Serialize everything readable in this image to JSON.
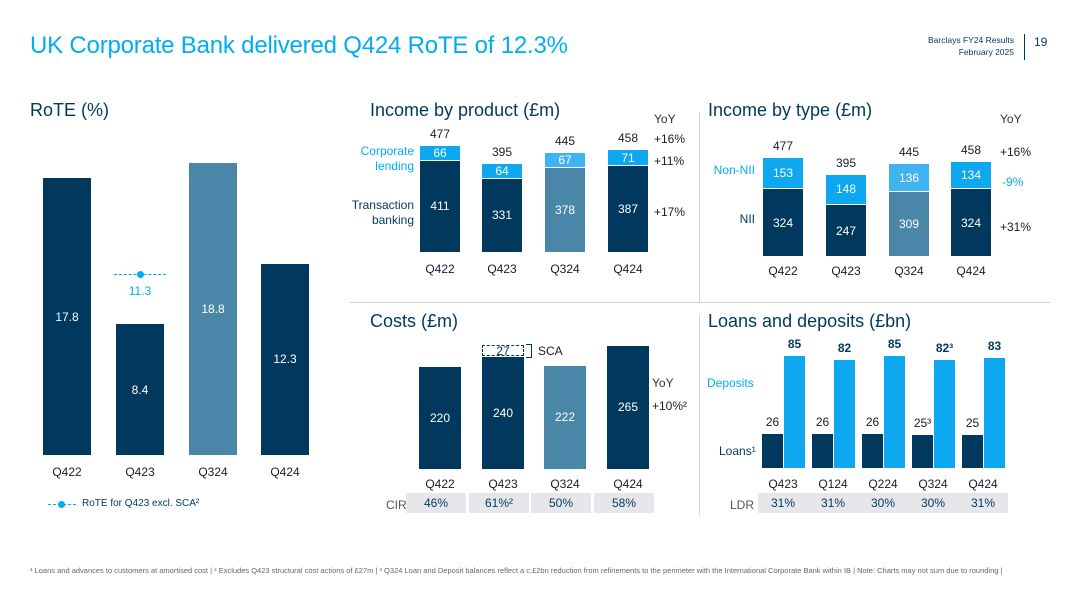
{
  "header": {
    "title": "UK Corporate Bank delivered Q424 RoTE of 12.3%",
    "brand_line1": "Barclays FY24 Results",
    "brand_line2": "February 2025",
    "page_number": "19"
  },
  "rote": {
    "title": "RoTE (%)",
    "legend": "RoTE for Q423 excl. SCA²",
    "marker_value": "11.3",
    "colors": {
      "navy": "#00395d",
      "steel": "#4a86a8",
      "cyan": "#00aeef"
    }
  },
  "income_product": {
    "title": "Income by product (£m)",
    "yoy_header": "YoY",
    "labels": {
      "lending": "Corporate lending",
      "transaction": "Transaction banking"
    },
    "yoy": {
      "total": "+16%",
      "lending": "+11%",
      "transaction": "+17%"
    }
  },
  "income_type": {
    "title": "Income by type (£m)",
    "yoy_header": "YoY",
    "labels": {
      "nonnii": "Non-NII",
      "nii": "NII"
    },
    "yoy": {
      "total": "+16%",
      "nonnii": "-9%",
      "nii": "+31%"
    }
  },
  "costs": {
    "title": "Costs (£m)",
    "sca_label": "SCA",
    "yoy_header": "YoY",
    "yoy_value": "+10%²",
    "cir_label": "CIR",
    "cir": [
      "46%",
      "61%²",
      "50%",
      "58%"
    ]
  },
  "loans": {
    "title": "Loans and deposits (£bn)",
    "deposits_label": "Deposits",
    "loans_label": "Loans¹",
    "ldr_label": "LDR",
    "ldr": [
      "31%",
      "31%",
      "30%",
      "30%",
      "31%"
    ]
  },
  "footnote": "¹ Loans and advances to customers at amortised cost | ² Excludes Q423 structural cost actions of £27m | ³ Q324 Loan and Deposit balances reflect a c.£2bn reduction from refinements to the perimeter with the International Corporate Bank within IB | Note: Charts may not sum due to rounding |",
  "chart_data": [
    {
      "type": "bar",
      "title": "RoTE (%)",
      "categories": [
        "Q422",
        "Q423",
        "Q324",
        "Q424"
      ],
      "values": [
        17.8,
        8.4,
        18.8,
        12.3
      ],
      "value_labels": [
        "17.8",
        "8.4",
        "18.8",
        "12.3"
      ],
      "annotation": {
        "category": "Q423",
        "value": 11.3,
        "label": "RoTE for Q423 excl. SCA²"
      }
    },
    {
      "type": "bar",
      "stacked": true,
      "title": "Income by product (£m)",
      "categories": [
        "Q422",
        "Q423",
        "Q324",
        "Q424"
      ],
      "series": [
        {
          "name": "Transaction banking",
          "values": [
            411,
            331,
            378,
            387
          ],
          "labels": [
            "411",
            "331",
            "378",
            "387"
          ]
        },
        {
          "name": "Corporate lending",
          "values": [
            66,
            64,
            67,
            71
          ],
          "labels": [
            "66",
            "64",
            "67",
            "71"
          ]
        }
      ],
      "totals": [
        477,
        395,
        445,
        458
      ],
      "total_labels": [
        "477",
        "395",
        "445",
        "458"
      ]
    },
    {
      "type": "bar",
      "stacked": true,
      "title": "Income by type (£m)",
      "categories": [
        "Q422",
        "Q423",
        "Q324",
        "Q424"
      ],
      "series": [
        {
          "name": "NII",
          "values": [
            324,
            247,
            309,
            324
          ],
          "labels": [
            "324",
            "247",
            "309",
            "324"
          ]
        },
        {
          "name": "Non-NII",
          "values": [
            153,
            148,
            136,
            134
          ],
          "labels": [
            "153",
            "148",
            "136",
            "134"
          ]
        }
      ],
      "totals": [
        477,
        395,
        445,
        458
      ],
      "total_labels": [
        "477",
        "395",
        "445",
        "458"
      ]
    },
    {
      "type": "bar",
      "stacked": true,
      "title": "Costs (£m)",
      "categories": [
        "Q422",
        "Q423",
        "Q324",
        "Q424"
      ],
      "series": [
        {
          "name": "Costs",
          "values": [
            220,
            240,
            222,
            265
          ],
          "labels": [
            "220",
            "240",
            "222",
            "265"
          ]
        },
        {
          "name": "SCA",
          "values": [
            0,
            27,
            0,
            0
          ],
          "labels": [
            "",
            "27",
            "",
            ""
          ]
        }
      ]
    },
    {
      "type": "bar",
      "title": "Loans and deposits (£bn)",
      "categories": [
        "Q423",
        "Q124",
        "Q224",
        "Q324",
        "Q424"
      ],
      "series": [
        {
          "name": "Loans¹",
          "values": [
            26,
            26,
            26,
            25,
            25
          ],
          "labels": [
            "26",
            "26",
            "26",
            "25³",
            "25"
          ]
        },
        {
          "name": "Deposits",
          "values": [
            85,
            82,
            85,
            82,
            83
          ],
          "labels": [
            "85",
            "82",
            "85",
            "82³",
            "83"
          ]
        }
      ]
    }
  ]
}
